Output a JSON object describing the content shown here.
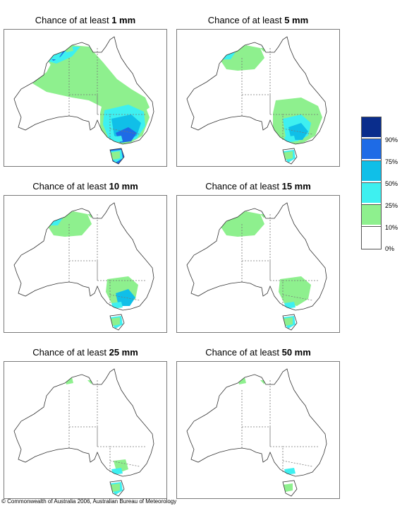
{
  "panels": [
    {
      "prefix": "Chance of at least",
      "amount": "1 mm"
    },
    {
      "prefix": "Chance of at least",
      "amount": "5 mm"
    },
    {
      "prefix": "Chance of at least",
      "amount": "10 mm"
    },
    {
      "prefix": "Chance of at least",
      "amount": "15 mm"
    },
    {
      "prefix": "Chance of at least",
      "amount": "25 mm"
    },
    {
      "prefix": "Chance of at least",
      "amount": "50 mm"
    }
  ],
  "legend": {
    "labels": [
      "90%",
      "75%",
      "50%",
      "25%",
      "10%",
      "0%"
    ],
    "colors": [
      "#0a2d8c",
      "#1e6be6",
      "#10bfe8",
      "#3ef0f0",
      "#8ef08e",
      "#ffffff"
    ]
  },
  "footer": "© Commonwealth of Australia 2006, Australian Bureau of Meteorology"
}
